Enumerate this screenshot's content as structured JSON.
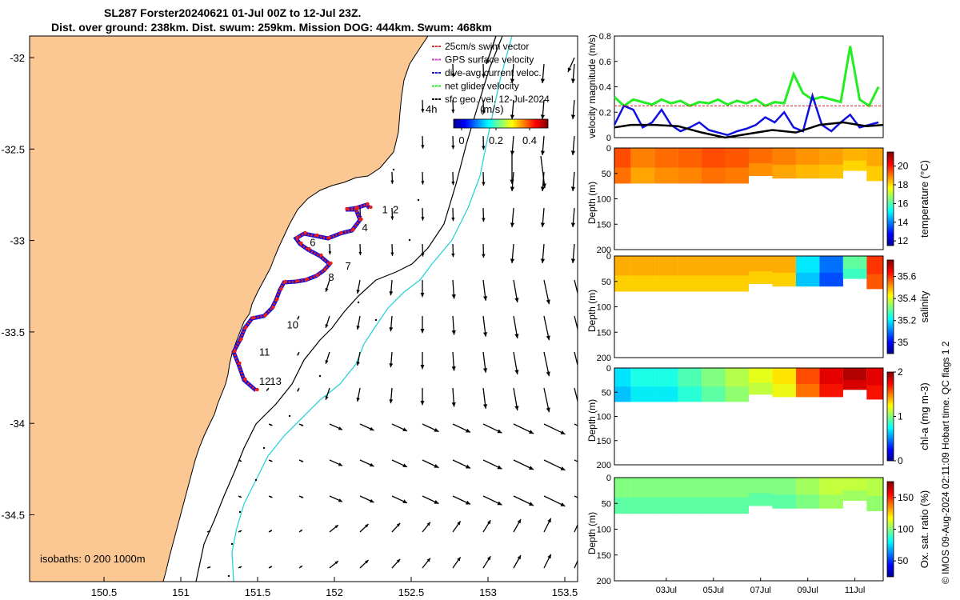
{
  "title_line1": "SL287 Forster20240621 01-Jul 00Z to 12-Jul 23Z.",
  "title_line2": "Dist. over ground: 238km. Dist. swum: 259km. Mission DOG: 444km. Swum: 468km",
  "footer": "© IMOS 09-Aug-2024 02:11:09 Hobart time. QC flags 1  2",
  "colors": {
    "land": "#fbc894",
    "glider_red": "#e8201a",
    "glider_blue": "#1010e0",
    "isobath_cyan": "#2ad2d8",
    "net_green": "#22ee22",
    "swim_red": "#e03030",
    "gps_magenta": "#cc44cc",
    "sfc_black": "#000000"
  },
  "map": {
    "lon_ticks": [
      "150.5",
      "151",
      "151.5",
      "152",
      "152.5",
      "153",
      "153.5"
    ],
    "lat_ticks": [
      "-32",
      "-32.5",
      "-33",
      "-33.5",
      "-34",
      "-34.5"
    ],
    "isobaths_label": "isobaths: 0   200  1000m",
    "time_label": "4h",
    "colorbar_unit": "(m/s)",
    "colorbar_ticks": [
      "0",
      "0.2",
      "0.4"
    ],
    "legend": [
      {
        "label": "25cm/s swim vector",
        "color": "#e03030"
      },
      {
        "label": "GPS surface velocity",
        "color": "#cc44cc"
      },
      {
        "label": "dive-avg current veloc.",
        "color": "#1010e0"
      },
      {
        "label": "net glider velocity",
        "color": "#22ee22"
      },
      {
        "label": "sfc geo. vel. 12-Jul-2024",
        "color": "#000000"
      }
    ],
    "day_markers": [
      {
        "label": "1",
        "lon": 152.31,
        "lat": -32.85
      },
      {
        "label": "2",
        "lon": 152.38,
        "lat": -32.85
      },
      {
        "label": "4",
        "lon": 152.18,
        "lat": -32.95
      },
      {
        "label": "6",
        "lon": 151.84,
        "lat": -33.03
      },
      {
        "label": "7",
        "lon": 152.07,
        "lat": -33.16
      },
      {
        "label": "8",
        "lon": 151.96,
        "lat": -33.22
      },
      {
        "label": "10",
        "lon": 151.69,
        "lat": -33.48
      },
      {
        "label": "11",
        "lon": 151.51,
        "lat": -33.63
      },
      {
        "label": "12",
        "lon": 151.51,
        "lat": -33.79
      },
      {
        "label": "13",
        "lon": 151.58,
        "lat": -33.79
      }
    ]
  },
  "chart_data": [
    {
      "type": "line",
      "title": "",
      "xlabel": "",
      "ylabel": "velocity magnitude (m/s)",
      "ylim": [
        0,
        0.8
      ],
      "yticks": [
        "0",
        "0.2",
        "0.4",
        "0.6",
        "0.8"
      ],
      "xlim_days": [
        0.8,
        12.2
      ],
      "series": [
        {
          "name": "net glider velocity",
          "color": "#22ee22",
          "x": [
            0.8,
            1.2,
            1.6,
            2.0,
            2.4,
            2.8,
            3.2,
            3.6,
            4.0,
            4.4,
            4.8,
            5.2,
            5.6,
            6.0,
            6.4,
            6.8,
            7.2,
            7.6,
            8.0,
            8.4,
            8.8,
            9.2,
            9.6,
            10.0,
            10.4,
            10.8,
            11.2,
            11.6,
            12.0
          ],
          "values": [
            0.32,
            0.25,
            0.3,
            0.28,
            0.26,
            0.3,
            0.27,
            0.29,
            0.25,
            0.28,
            0.27,
            0.3,
            0.26,
            0.29,
            0.27,
            0.3,
            0.25,
            0.28,
            0.27,
            0.5,
            0.35,
            0.3,
            0.32,
            0.3,
            0.28,
            0.72,
            0.3,
            0.25,
            0.4
          ]
        },
        {
          "name": "dive-avg current veloc.",
          "color": "#1010e0",
          "x": [
            0.8,
            1.2,
            1.6,
            2.0,
            2.4,
            2.8,
            3.2,
            3.6,
            4.0,
            4.4,
            4.8,
            5.2,
            5.6,
            6.0,
            6.4,
            6.8,
            7.2,
            7.6,
            8.0,
            8.4,
            8.8,
            9.2,
            9.6,
            10.0,
            10.4,
            10.8,
            11.2,
            11.6,
            12.0
          ],
          "values": [
            0.1,
            0.25,
            0.22,
            0.08,
            0.12,
            0.22,
            0.1,
            0.05,
            0.08,
            0.12,
            0.06,
            0.04,
            0.02,
            0.05,
            0.07,
            0.1,
            0.16,
            0.12,
            0.2,
            0.08,
            0.05,
            0.33,
            0.1,
            0.05,
            0.12,
            0.18,
            0.08,
            0.1,
            0.12
          ]
        },
        {
          "name": "sfc geo. vel.",
          "color": "#000000",
          "x": [
            0.8,
            1.5,
            2.5,
            3.5,
            4.5,
            5.5,
            6.5,
            7.5,
            8.5,
            9.5,
            10.5,
            11.5,
            12.2
          ],
          "values": [
            0.08,
            0.1,
            0.1,
            0.09,
            0.04,
            0.0,
            0.03,
            0.06,
            0.04,
            0.1,
            0.12,
            0.09,
            0.1
          ]
        },
        {
          "name": "25cm/s swim vector",
          "color": "#e03030",
          "x": [
            0.8,
            12.2
          ],
          "values": [
            0.25,
            0.25
          ]
        }
      ]
    },
    {
      "type": "heatmap",
      "variable": "temperature",
      "colorbar_label": "temperature (°C)",
      "colorbar_ticks": [
        "12",
        "14",
        "16",
        "18",
        "20"
      ],
      "clim": [
        11.5,
        21.5
      ],
      "ylabel": "Depth (m)",
      "ylim": [
        0,
        200
      ],
      "yticks": [
        "0",
        "50",
        "100",
        "150",
        "200"
      ],
      "x_days": [
        1,
        2,
        3,
        4,
        5,
        6,
        7,
        8,
        9,
        10,
        11,
        12
      ],
      "surface_values": [
        19.5,
        19.0,
        19.2,
        19.3,
        19.5,
        19.4,
        19.2,
        19.0,
        18.8,
        18.7,
        18.5,
        18.6
      ],
      "max_depth_m": [
        70,
        70,
        70,
        70,
        70,
        70,
        55,
        60,
        60,
        60,
        45,
        65
      ]
    },
    {
      "type": "heatmap",
      "variable": "salinity",
      "colorbar_label": "salinity",
      "colorbar_ticks": [
        "35",
        "35.2",
        "35.4",
        "35.6"
      ],
      "clim": [
        34.9,
        35.75
      ],
      "ylabel": "Depth (m)",
      "ylim": [
        0,
        200
      ],
      "yticks": [
        "0",
        "50",
        "100",
        "150",
        "200"
      ],
      "x_days": [
        1,
        2,
        3,
        4,
        5,
        6,
        7,
        8,
        9,
        10,
        11,
        12
      ],
      "surface_values": [
        35.5,
        35.5,
        35.5,
        35.5,
        35.5,
        35.5,
        35.5,
        35.5,
        35.2,
        35.1,
        35.3,
        35.6
      ],
      "max_depth_m": [
        70,
        70,
        70,
        70,
        70,
        70,
        55,
        60,
        60,
        60,
        45,
        65
      ]
    },
    {
      "type": "heatmap",
      "variable": "chl-a",
      "colorbar_label": "chl-a (mg m-3)",
      "colorbar_ticks": [
        "0",
        "1",
        "2"
      ],
      "clim": [
        0,
        2
      ],
      "ylabel": "Depth (m)",
      "ylim": [
        0,
        200
      ],
      "yticks": [
        "0",
        "50",
        "100",
        "150",
        "200"
      ],
      "x_days": [
        1,
        2,
        3,
        4,
        5,
        6,
        7,
        8,
        9,
        10,
        11,
        12
      ],
      "surface_values": [
        0.7,
        0.8,
        0.8,
        0.9,
        1.0,
        1.1,
        1.2,
        1.3,
        1.6,
        1.8,
        1.9,
        1.8
      ],
      "max_depth_m": [
        70,
        70,
        70,
        70,
        70,
        70,
        55,
        60,
        60,
        60,
        45,
        65
      ]
    },
    {
      "type": "heatmap",
      "variable": "oxygen saturation",
      "colorbar_label": "Ox. sat. ratio (%)",
      "colorbar_ticks": [
        "50",
        "100",
        "150"
      ],
      "clim": [
        25,
        175
      ],
      "ylabel": "Depth (m)",
      "ylim": [
        0,
        200
      ],
      "yticks": [
        "0",
        "50",
        "100",
        "150",
        "200"
      ],
      "x_ticks": [
        "03Jul",
        "05Jul",
        "07Jul",
        "09Jul",
        "11Jul"
      ],
      "x_days": [
        1,
        2,
        3,
        4,
        5,
        6,
        7,
        8,
        9,
        10,
        11,
        12
      ],
      "surface_values": [
        100,
        100,
        100,
        100,
        100,
        100,
        100,
        100,
        105,
        110,
        110,
        108
      ],
      "max_depth_m": [
        70,
        70,
        70,
        70,
        70,
        70,
        55,
        60,
        60,
        60,
        45,
        65
      ]
    }
  ]
}
